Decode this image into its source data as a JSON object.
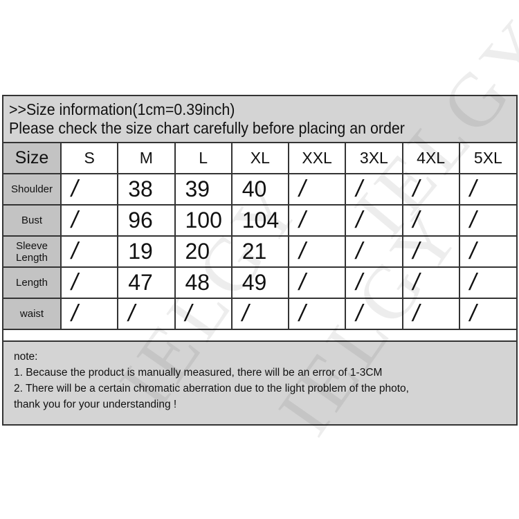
{
  "header": {
    "line1": ">>Size information(1cm=0.39inch)",
    "line2": "Please check the size chart carefully before placing an order"
  },
  "table": {
    "corner": "Size",
    "columns": [
      "S",
      "M",
      "L",
      "XL",
      "XXL",
      "3XL",
      "4XL",
      "5XL"
    ],
    "rows": [
      {
        "label": "Shoulder",
        "values": [
          "/",
          "38",
          "39",
          "40",
          "/",
          "/",
          "/",
          "/"
        ]
      },
      {
        "label": "Bust",
        "values": [
          "/",
          "96",
          "100",
          "104",
          "/",
          "/",
          "/",
          "/"
        ]
      },
      {
        "label": "Sleeve Length",
        "values": [
          "/",
          "19",
          "20",
          "21",
          "/",
          "/",
          "/",
          "/"
        ]
      },
      {
        "label": "Length",
        "values": [
          "/",
          "47",
          "48",
          "49",
          "/",
          "/",
          "/",
          "/"
        ]
      },
      {
        "label": "waist",
        "values": [
          "/",
          "/",
          "/",
          "/",
          "/",
          "/",
          "/",
          "/"
        ]
      }
    ]
  },
  "notes": {
    "title": "note:",
    "items": [
      "1. Because the product is manually measured, there will be an error of 1-3CM",
      "2. There will be a certain chromatic aberration due to the light problem of the photo,",
      "thank you for your understanding !"
    ]
  },
  "watermark": "IELGY",
  "colors": {
    "header_bg": "#d4d4d4",
    "label_bg": "#c3c3c3",
    "border": "#333333"
  }
}
